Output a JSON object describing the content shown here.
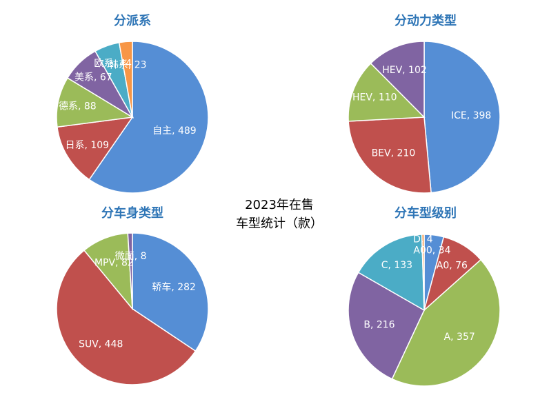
{
  "figure": {
    "title_line1": "2023年在售",
    "title_line2": "车型统计（款）"
  },
  "colors": {
    "title": "#2E75B6",
    "blue": "#558ED5",
    "red": "#C0504D",
    "green": "#9BBB59",
    "purple": "#8064A2",
    "teal": "#4BACC6",
    "orange": "#F79646"
  },
  "chart_data": [
    {
      "type": "pie",
      "title": "分派系",
      "labels": [
        "自主",
        "日系",
        "德系",
        "美系",
        "欧系",
        "韩系"
      ],
      "values": [
        489,
        109,
        88,
        67,
        44,
        23
      ],
      "colors": [
        "#558ED5",
        "#C0504D",
        "#9BBB59",
        "#8064A2",
        "#4BACC6",
        "#F79646"
      ],
      "label_format": "{name}, {value}"
    },
    {
      "type": "pie",
      "title": "分动力类型",
      "labels": [
        "ICE",
        "BEV",
        "PHEV",
        "HEV"
      ],
      "values": [
        398,
        210,
        110,
        102
      ],
      "colors": [
        "#558ED5",
        "#C0504D",
        "#9BBB59",
        "#8064A2"
      ],
      "label_format": "{name}, {value}"
    },
    {
      "type": "pie",
      "title": "分车身类型",
      "labels": [
        "轿车",
        "SUV",
        "MPV",
        "微面"
      ],
      "values": [
        282,
        448,
        82,
        8
      ],
      "colors": [
        "#558ED5",
        "#C0504D",
        "#9BBB59",
        "#8064A2"
      ],
      "label_format": "{name}, {value}"
    },
    {
      "type": "pie",
      "title": "分车型级别",
      "labels": [
        "A00",
        "A0",
        "A",
        "B",
        "C",
        "D"
      ],
      "values": [
        34,
        76,
        357,
        216,
        133,
        4
      ],
      "colors": [
        "#558ED5",
        "#C0504D",
        "#9BBB59",
        "#8064A2",
        "#4BACC6",
        "#F79646"
      ],
      "label_format": "{name}, {value}"
    }
  ]
}
